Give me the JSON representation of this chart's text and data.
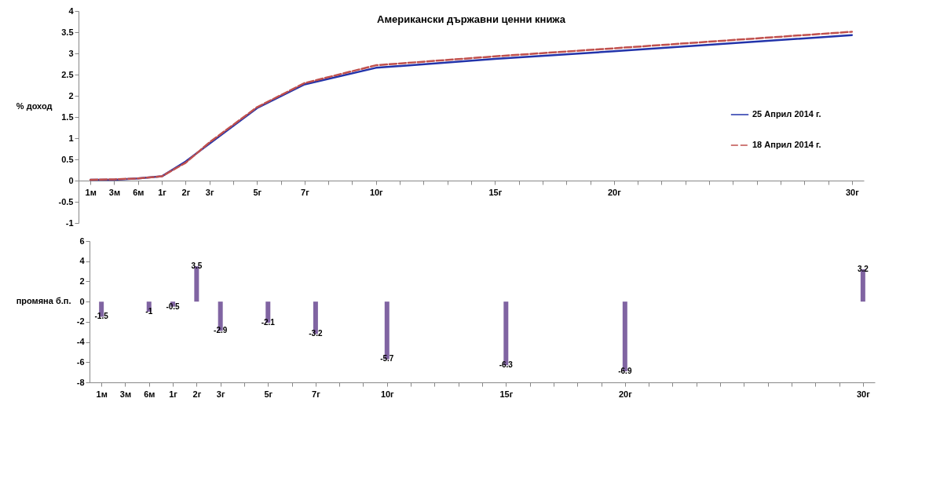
{
  "chart_data": [
    {
      "type": "line",
      "title": "Американски държавни ценни книжа",
      "ylabel": "% доход",
      "categories": [
        "1м",
        "3м",
        "6м",
        "1г",
        "2г",
        "3г",
        null,
        "5г",
        null,
        "7г",
        null,
        null,
        "10г",
        null,
        null,
        null,
        null,
        "15г",
        null,
        null,
        null,
        null,
        "20г",
        null,
        null,
        null,
        null,
        null,
        null,
        null,
        null,
        null,
        "30г"
      ],
      "series": [
        {
          "name": "25 Април 2014 г.",
          "color": "#2233aa",
          "line_style": "solid",
          "values": [
            0.02,
            0.02,
            0.05,
            0.1,
            0.45,
            0.87,
            null,
            1.71,
            null,
            2.27,
            null,
            null,
            2.66,
            null,
            null,
            null,
            null,
            2.87,
            null,
            null,
            null,
            null,
            3.05,
            null,
            null,
            null,
            null,
            null,
            null,
            null,
            null,
            null,
            3.43
          ]
        },
        {
          "name": "18 Април 2014 г.",
          "color": "#c0504d",
          "line_style": "dashed",
          "values": [
            0.02,
            0.03,
            0.05,
            0.1,
            0.42,
            0.9,
            null,
            1.73,
            null,
            2.3,
            null,
            null,
            2.72,
            null,
            null,
            null,
            null,
            2.93,
            null,
            null,
            null,
            null,
            3.12,
            null,
            null,
            null,
            null,
            null,
            null,
            null,
            null,
            null,
            3.51
          ]
        }
      ],
      "ylim": [
        -1,
        4
      ],
      "yticks": [
        -1,
        -0.5,
        0,
        0.5,
        1,
        1.5,
        2,
        2.5,
        3,
        3.5,
        4
      ],
      "grid": false,
      "legend": "right"
    },
    {
      "type": "bar",
      "ylabel": "промяна б.п.",
      "categories": [
        "1м",
        "3м",
        "6м",
        "1г",
        "2г",
        "3г",
        null,
        "5г",
        null,
        "7г",
        null,
        null,
        "10г",
        null,
        null,
        null,
        null,
        "15г",
        null,
        null,
        null,
        null,
        "20г",
        null,
        null,
        null,
        null,
        null,
        null,
        null,
        null,
        null,
        "30г"
      ],
      "values": [
        -1.5,
        0,
        -1,
        -0.5,
        3.5,
        -2.9,
        null,
        -2.1,
        null,
        -3.2,
        null,
        null,
        -5.7,
        null,
        null,
        null,
        null,
        -6.3,
        null,
        null,
        null,
        null,
        -6.9,
        null,
        null,
        null,
        null,
        null,
        null,
        null,
        null,
        null,
        3.2
      ],
      "value_labels": [
        "-1.5",
        null,
        "-1",
        "-0.5",
        "3.5",
        "-2.9",
        null,
        "-2.1",
        null,
        "-3.2",
        null,
        null,
        "-5.7",
        null,
        null,
        null,
        null,
        "-6.3",
        null,
        null,
        null,
        null,
        "-6.9",
        null,
        null,
        null,
        null,
        null,
        null,
        null,
        null,
        null,
        "3.2"
      ],
      "color": "#8064a2",
      "ylim": [
        -8,
        6
      ],
      "yticks": [
        -8,
        -6,
        -4,
        -2,
        0,
        2,
        4,
        6
      ],
      "grid": false
    }
  ]
}
